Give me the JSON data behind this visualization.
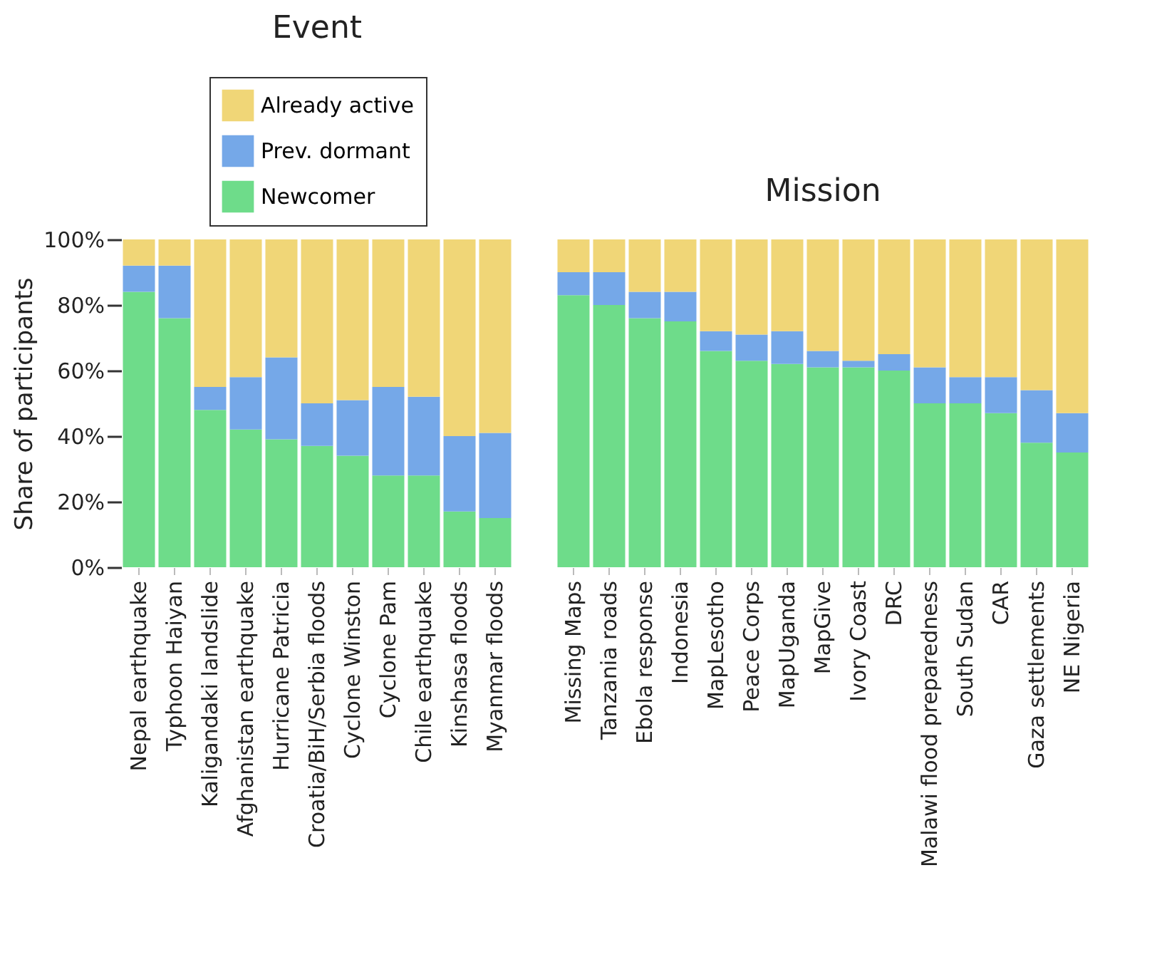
{
  "chart_data": [
    {
      "type": "bar",
      "title": "Event",
      "ylabel": "Share of participants",
      "stacked": true,
      "legend": "top",
      "grid": false,
      "categories": [
        "Nepal earthquake",
        "Typhoon Haiyan",
        "Kaligandaki landslide",
        "Afghanistan earthquake",
        "Hurricane Patricia",
        "Croatia/BiH/Serbia floods",
        "Cyclone Winston",
        "Cyclone Pam",
        "Chile earthquake",
        "Kinshasa floods",
        "Myanmar floods"
      ],
      "ylim": [
        0,
        100
      ],
      "yticks": [
        {
          "value": 0,
          "label": "0%"
        },
        {
          "value": 20,
          "label": "20%"
        },
        {
          "value": 40,
          "label": "40%"
        },
        {
          "value": 60,
          "label": "60%"
        },
        {
          "value": 80,
          "label": "80%"
        },
        {
          "value": 100,
          "label": "100%"
        }
      ],
      "series": [
        {
          "name": "Newcomer",
          "color": "#6edc8a",
          "values": [
            84,
            76,
            48,
            42,
            39,
            37,
            34,
            28,
            28,
            17,
            15
          ]
        },
        {
          "name": "Prev. dormant",
          "color": "#75a8e8",
          "values": [
            8,
            16,
            7,
            16,
            25,
            13,
            17,
            27,
            24,
            23,
            26
          ]
        },
        {
          "name": "Already active",
          "color": "#f0d677",
          "values": [
            8,
            8,
            45,
            42,
            36,
            50,
            49,
            45,
            48,
            60,
            59
          ]
        }
      ]
    },
    {
      "type": "bar",
      "title": "Mission",
      "stacked": true,
      "tick_labels": "x",
      "categories": [
        "Missing Maps",
        "Tanzania roads",
        "Ebola response",
        "Indonesia",
        "MapLesotho",
        "Peace Corps",
        "MapUganda",
        "MapGive",
        "Ivory Coast",
        "DRC",
        "Malawi flood preparedness",
        "South Sudan",
        "CAR",
        "Gaza settlements",
        "NE Nigeria"
      ],
      "ylim": [
        0,
        100
      ],
      "series": [
        {
          "color": "#6edc8a",
          "values": [
            83,
            80,
            76,
            75,
            66,
            63,
            62,
            61,
            61,
            60,
            50,
            50,
            47,
            38,
            35
          ]
        },
        {
          "color": "#75a8e8",
          "values": [
            7,
            10,
            8,
            9,
            6,
            8,
            10,
            5,
            2,
            5,
            11,
            8,
            11,
            16,
            12
          ]
        },
        {
          "color": "#f0d677",
          "values": [
            10,
            10,
            16,
            16,
            28,
            29,
            28,
            34,
            37,
            35,
            39,
            42,
            42,
            46,
            53
          ]
        }
      ]
    }
  ]
}
